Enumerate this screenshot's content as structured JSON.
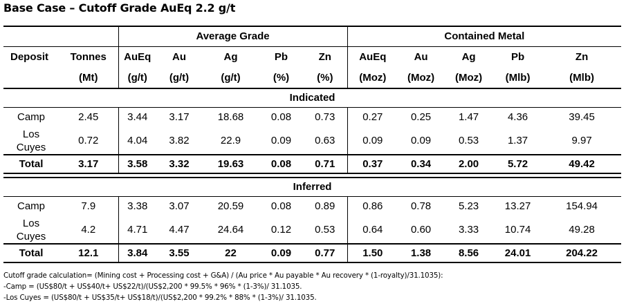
{
  "title": "Base Case – Cutoff Grade AuEq 2.2 g/t",
  "headers": {
    "average_grade": "Average Grade",
    "contained_metal": "Contained Metal",
    "columns": [
      "Deposit",
      "Tonnes",
      "AuEq",
      "Au",
      "Ag",
      "Pb",
      "Zn",
      "AuEq",
      "Au",
      "Ag",
      "Pb",
      "Zn"
    ],
    "units": [
      "",
      "(Mt)",
      "(g/t)",
      "(g/t)",
      "(g/t)",
      "(%)",
      "(%)",
      "(Moz)",
      "(Moz)",
      "(Moz)",
      "(Mlb)",
      "(Mlb)"
    ]
  },
  "sections": [
    {
      "name": "Indicated",
      "rows": [
        {
          "deposit": "Camp",
          "values": [
            "2.45",
            "3.44",
            "3.17",
            "18.68",
            "0.08",
            "0.73",
            "0.27",
            "0.25",
            "1.47",
            "4.36",
            "39.45"
          ]
        },
        {
          "deposit_line1": "Los",
          "deposit_line2": "Cuyes",
          "values": [
            "0.72",
            "4.04",
            "3.82",
            "22.9",
            "0.09",
            "0.63",
            "0.09",
            "0.09",
            "0.53",
            "1.37",
            "9.97"
          ]
        }
      ],
      "total": {
        "label": "Total",
        "values": [
          "3.17",
          "3.58",
          "3.32",
          "19.63",
          "0.08",
          "0.71",
          "0.37",
          "0.34",
          "2.00",
          "5.72",
          "49.42"
        ]
      }
    },
    {
      "name": "Inferred",
      "rows": [
        {
          "deposit": "Camp",
          "values": [
            "7.9",
            "3.38",
            "3.07",
            "20.59",
            "0.08",
            "0.89",
            "0.86",
            "0.78",
            "5.23",
            "13.27",
            "154.94"
          ]
        },
        {
          "deposit_line1": "Los",
          "deposit_line2": "Cuyes",
          "values": [
            "4.2",
            "4.71",
            "4.47",
            "24.64",
            "0.12",
            "0.53",
            "0.64",
            "0.60",
            "3.33",
            "10.74",
            "49.28"
          ]
        }
      ],
      "total": {
        "label": "Total",
        "values": [
          "12.1",
          "3.84",
          "3.55",
          "22",
          "0.09",
          "0.77",
          "1.50",
          "1.38",
          "8.56",
          "24.01",
          "204.22"
        ]
      }
    }
  ],
  "footer": [
    "Cutoff grade calculation= (Mining cost + Processing cost + G&A) / (Au price * Au payable * Au recovery * (1-royalty)/31.1035):",
    "-Camp = (US$80/t + US$40/t+ US$22/t)/(US$2,200 * 99.5% * 96% * (1-3%)/ 31.1035.",
    "-Los Cuyes = (US$80/t + US$35/t+ US$18/t)/(US$2,200 * 99.2% * 88% * (1-3%)/ 31.1035."
  ]
}
